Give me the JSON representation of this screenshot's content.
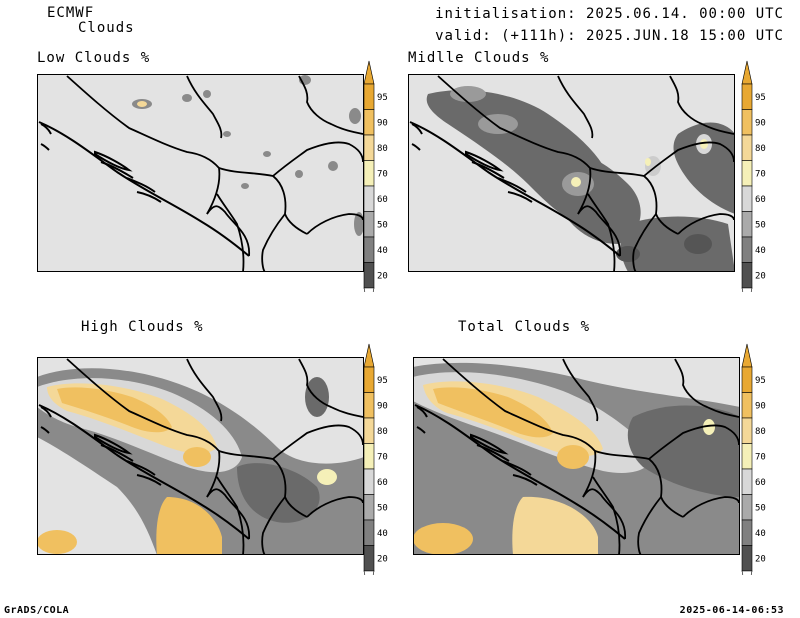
{
  "header": {
    "model": "ECMWF",
    "field": "Clouds",
    "initialisation": "initialisation: 2025.06.14. 00:00 UTC",
    "valid": "valid: (+111h): 2025.JUN.18 15:00 UTC"
  },
  "panels": [
    {
      "title": "Low Clouds %"
    },
    {
      "title": "Midlle Clouds %"
    },
    {
      "title": "High Clouds %"
    },
    {
      "title": "Total Clouds %"
    }
  ],
  "colorbar": {
    "levels": [
      "95",
      "90",
      "80",
      "70",
      "60",
      "50",
      "40",
      "20"
    ],
    "colors": [
      "#e8a832",
      "#f0c060",
      "#f4d898",
      "#f5f0b8",
      "#d8d8d8",
      "#aaaaaa",
      "#808080",
      "#505050"
    ],
    "arrow_top": "#e8a832",
    "arrow_bottom": "#ffffff"
  },
  "footer": {
    "left": "GrADS/COLA",
    "right": "2025-06-14-06:53"
  },
  "colors": {
    "map_background": "#e3e3e3",
    "border": "#000000"
  }
}
